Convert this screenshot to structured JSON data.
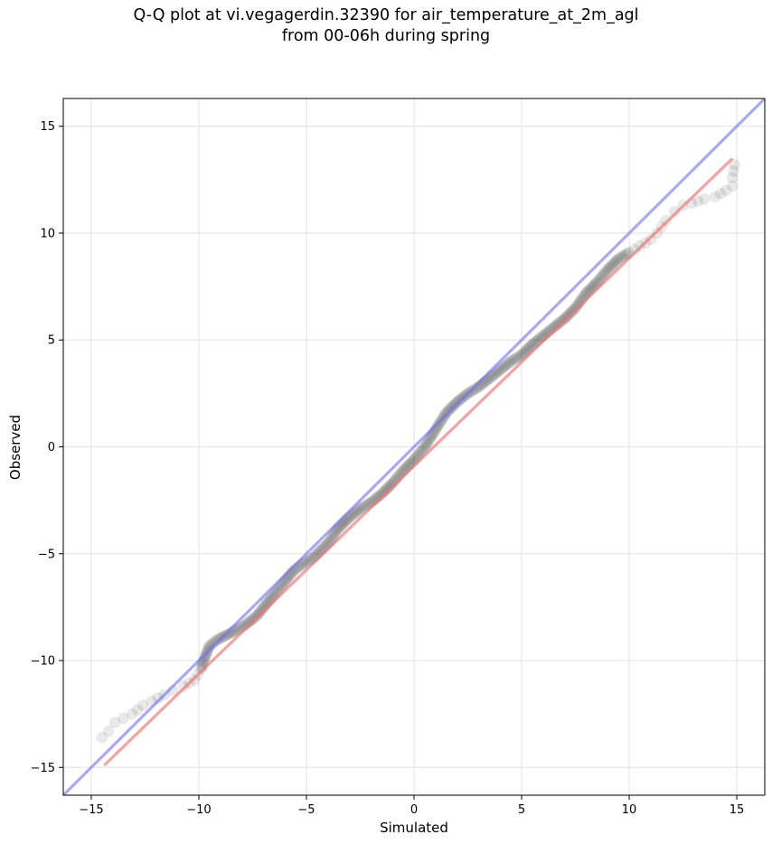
{
  "chart_data": {
    "type": "scatter",
    "title_line1": "Q-Q plot at vi.vegagerdin.32390 for air_temperature_at_2m_agl",
    "title_line2": "from 00-06h during spring",
    "xlabel": "Simulated",
    "ylabel": "Observed",
    "xlim": [
      -16.3,
      16.3
    ],
    "ylim": [
      -16.3,
      16.3
    ],
    "xticks": [
      -15,
      -10,
      -5,
      0,
      5,
      10,
      15
    ],
    "yticks": [
      -15,
      -10,
      -5,
      0,
      5,
      10,
      15
    ],
    "tick_labels": [
      "−15",
      "−10",
      "−5",
      "0",
      "5",
      "10",
      "15"
    ],
    "grid": true,
    "colors": {
      "points": "#000000",
      "identity_line": "#7070f0",
      "fit_line": "#f07070",
      "grid": "#e6e6e6"
    },
    "identity_line": {
      "x": [
        -16.3,
        16.3
      ],
      "y": [
        -16.3,
        16.3
      ]
    },
    "fit_line": {
      "x": [
        -14.4,
        14.8
      ],
      "y": [
        -14.9,
        13.5
      ]
    },
    "quantile_curve": {
      "x": [
        -14.5,
        -14.2,
        -13.9,
        -13.1,
        -12.6,
        -12.2,
        -11.6,
        -11.2,
        -10.7,
        -10.2,
        -9.9,
        -9.7,
        -9.5,
        -9.1,
        -8.7,
        -8.3,
        -7.8,
        -7.3,
        -6.9,
        -6.5,
        -6.0,
        -5.6,
        -5.2,
        -4.7,
        -4.3,
        -3.9,
        -3.6,
        -3.3,
        -3.0,
        -2.5,
        -2.0,
        -1.5,
        -1.0,
        -0.5,
        0.0,
        0.5,
        1.0,
        1.5,
        2.0,
        2.5,
        3.0,
        3.5,
        4.0,
        4.5,
        5.0,
        5.5,
        6.0,
        6.5,
        7.0,
        7.5,
        8.0,
        8.5,
        9.0,
        9.5,
        10.0,
        10.5,
        11.0,
        11.3,
        11.7,
        12.1,
        12.5,
        12.9,
        13.5,
        14.0,
        14.5,
        14.8,
        14.8,
        14.9
      ],
      "y": [
        -13.6,
        -13.3,
        -12.9,
        -12.5,
        -12.1,
        -11.9,
        -11.6,
        -11.4,
        -11.2,
        -10.9,
        -10.4,
        -9.8,
        -9.3,
        -9.0,
        -8.8,
        -8.6,
        -8.3,
        -7.9,
        -7.4,
        -6.9,
        -6.3,
        -5.8,
        -5.5,
        -5.2,
        -4.8,
        -4.4,
        -3.9,
        -3.6,
        -3.3,
        -2.9,
        -2.6,
        -2.2,
        -1.7,
        -1.1,
        -0.6,
        0.0,
        0.8,
        1.6,
        2.1,
        2.5,
        2.8,
        3.2,
        3.6,
        4.0,
        4.3,
        4.8,
        5.2,
        5.6,
        6.0,
        6.5,
        7.2,
        7.7,
        8.3,
        8.8,
        9.1,
        9.4,
        9.7,
        10.0,
        10.6,
        11.0,
        11.3,
        11.4,
        11.6,
        11.7,
        12.0,
        12.2,
        12.6,
        13.2
      ]
    }
  }
}
